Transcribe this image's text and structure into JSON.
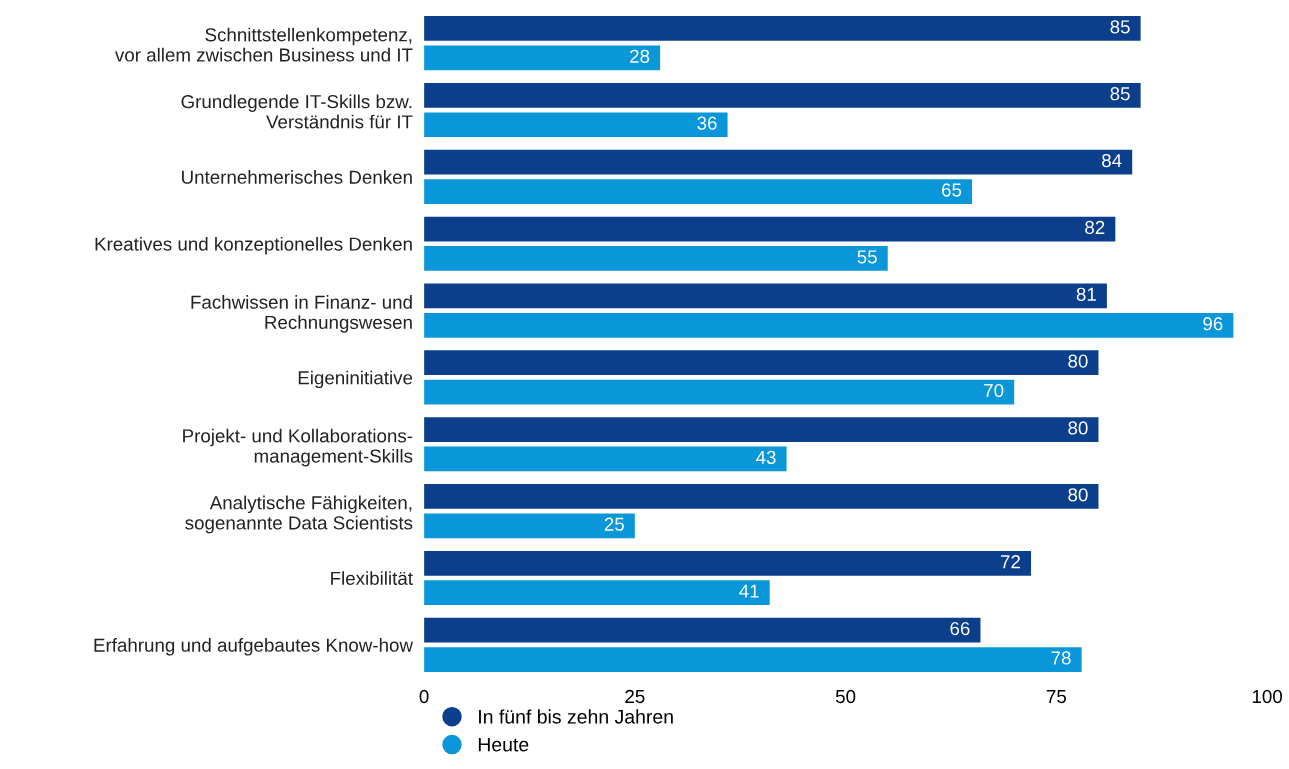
{
  "chart_data": {
    "type": "bar",
    "orientation": "horizontal",
    "categories": [
      "Schnittstellenkompetenz,\nvor allem zwischen Business und IT",
      "Grundlegende IT-Skills bzw.\nVerständnis für IT",
      "Unternehmerisches Denken",
      "Kreatives und konzeptionelles Denken",
      "Fachwissen in Finanz- und\nRechnungswesen",
      "Eigeninitiative",
      "Projekt- und Kollaborations-\nmanagement-Skills",
      "Analytische Fähigkeiten,\nsogenannte Data Scientists",
      "Flexibilität",
      "Erfahrung und aufgebautes Know-how"
    ],
    "series": [
      {
        "name": "In fünf bis zehn Jahren",
        "color": "#0b3f8c",
        "values": [
          85,
          85,
          84,
          82,
          81,
          80,
          80,
          80,
          72,
          66
        ]
      },
      {
        "name": "Heute",
        "color": "#0a97d9",
        "values": [
          28,
          36,
          65,
          55,
          96,
          70,
          43,
          25,
          41,
          78
        ]
      }
    ],
    "xlim": [
      0,
      100
    ],
    "xticks": [
      0,
      25,
      50,
      75,
      100
    ],
    "data_labels": true,
    "legend": "bottom left",
    "grid": false
  }
}
